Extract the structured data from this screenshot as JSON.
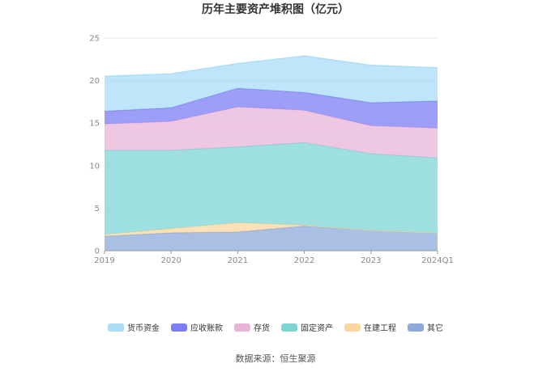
{
  "chart_data": {
    "type": "area",
    "stacked": true,
    "title": "历年主要资产堆积图（亿元）",
    "categories": [
      "2019",
      "2020",
      "2021",
      "2022",
      "2023",
      "2024Q1"
    ],
    "ylim": [
      0,
      25
    ],
    "yticks": [
      "0",
      "5",
      "10",
      "15",
      "20",
      "25"
    ],
    "grid": true,
    "legend_position": "bottom",
    "series": [
      {
        "name": "其它",
        "color": "#8eaadb",
        "values": [
          1.7,
          2.1,
          2.2,
          2.9,
          2.4,
          2.1
        ]
      },
      {
        "name": "在建工程",
        "color": "#fad7a0",
        "values": [
          0.2,
          0.5,
          1.1,
          0.1,
          0.0,
          0.0
        ]
      },
      {
        "name": "固定资产",
        "color": "#7ed6d4",
        "values": [
          9.9,
          9.2,
          8.9,
          9.7,
          9.0,
          8.8
        ]
      },
      {
        "name": "存货",
        "color": "#e8b4d8",
        "values": [
          3.1,
          3.4,
          4.7,
          3.8,
          3.3,
          3.5
        ]
      },
      {
        "name": "应收账款",
        "color": "#7b7ef5",
        "values": [
          1.5,
          1.6,
          2.2,
          2.1,
          2.7,
          3.2
        ]
      },
      {
        "name": "货币资金",
        "color": "#a8dcf7",
        "values": [
          4.1,
          4.0,
          2.9,
          4.3,
          4.4,
          3.9
        ]
      }
    ],
    "legend_order": [
      "货币资金",
      "应收账款",
      "存货",
      "固定资产",
      "在建工程",
      "其它"
    ]
  },
  "source_label": "数据来源：恒生聚源"
}
